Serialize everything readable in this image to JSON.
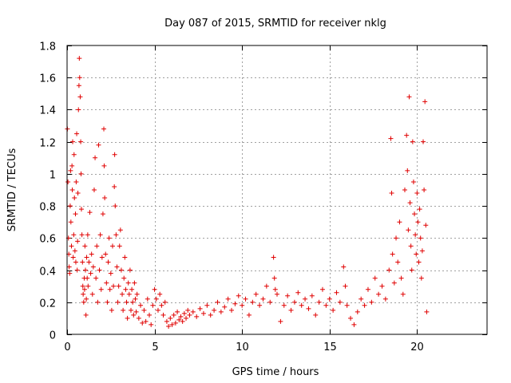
{
  "chart_data": {
    "type": "scatter",
    "title": "Day 087 of 2015, SRMTID for receiver nklg",
    "xlabel": "GPS time / hours",
    "ylabel": "SRMTID / TECUs",
    "xlim": [
      0,
      24
    ],
    "ylim": [
      0,
      1.8
    ],
    "xticks": [
      0,
      5,
      10,
      15,
      20
    ],
    "yticks": [
      0,
      0.2,
      0.4,
      0.6,
      0.8,
      1,
      1.2,
      1.4,
      1.6,
      1.8
    ],
    "xtick_labels": [
      "0",
      "5",
      "10",
      "15",
      "20"
    ],
    "ytick_labels": [
      "0",
      "0.2",
      "0.4",
      "0.6",
      "0.8",
      "1",
      "1.2",
      "1.4",
      "1.6",
      "1.8"
    ],
    "grid": true,
    "marker": "+",
    "color": "#e00000",
    "series": [
      {
        "name": "SRMTID",
        "points": [
          [
            0.02,
            1.28
          ],
          [
            0.05,
            0.95
          ],
          [
            0.08,
            0.6
          ],
          [
            0.1,
            0.5
          ],
          [
            0.12,
            0.42
          ],
          [
            0.15,
            0.38
          ],
          [
            0.18,
            0.8
          ],
          [
            0.2,
            1.02
          ],
          [
            0.22,
            0.7
          ],
          [
            0.25,
            0.55
          ],
          [
            0.28,
            1.05
          ],
          [
            0.3,
            0.9
          ],
          [
            0.32,
            1.2
          ],
          [
            0.35,
            0.48
          ],
          [
            0.38,
            0.62
          ],
          [
            0.4,
            1.12
          ],
          [
            0.42,
            0.85
          ],
          [
            0.45,
            0.52
          ],
          [
            0.48,
            0.75
          ],
          [
            0.5,
            0.45
          ],
          [
            0.52,
            0.95
          ],
          [
            0.55,
            1.25
          ],
          [
            0.58,
            0.4
          ],
          [
            0.6,
            0.58
          ],
          [
            0.62,
            0.88
          ],
          [
            0.65,
            1.4
          ],
          [
            0.68,
            1.55
          ],
          [
            0.7,
            1.72
          ],
          [
            0.72,
            1.6
          ],
          [
            0.75,
            1.48
          ],
          [
            0.78,
            1.2
          ],
          [
            0.8,
            1.0
          ],
          [
            0.82,
            0.78
          ],
          [
            0.85,
            0.62
          ],
          [
            0.88,
            0.45
          ],
          [
            0.9,
            0.3
          ],
          [
            0.92,
            0.25
          ],
          [
            0.95,
            0.2
          ],
          [
            0.98,
            0.35
          ],
          [
            1.0,
            0.28
          ],
          [
            1.02,
            0.55
          ],
          [
            1.05,
            0.4
          ],
          [
            1.08,
            0.12
          ],
          [
            1.1,
            0.22
          ],
          [
            1.12,
            0.48
          ],
          [
            1.15,
            0.35
          ],
          [
            1.18,
            0.62
          ],
          [
            1.2,
            0.3
          ],
          [
            1.25,
            0.45
          ],
          [
            1.3,
            0.76
          ],
          [
            1.35,
            0.38
          ],
          [
            1.4,
            0.5
          ],
          [
            1.45,
            0.25
          ],
          [
            1.5,
            0.42
          ],
          [
            1.55,
            0.9
          ],
          [
            1.6,
            1.1
          ],
          [
            1.65,
            0.35
          ],
          [
            1.7,
            0.55
          ],
          [
            1.75,
            0.2
          ],
          [
            1.8,
            1.18
          ],
          [
            1.85,
            0.4
          ],
          [
            1.9,
            0.62
          ],
          [
            1.95,
            0.28
          ],
          [
            2.0,
            0.48
          ],
          [
            2.05,
            0.75
          ],
          [
            2.1,
            1.28
          ],
          [
            2.12,
            1.05
          ],
          [
            2.15,
            0.85
          ],
          [
            2.2,
            0.5
          ],
          [
            2.25,
            0.32
          ],
          [
            2.3,
            0.2
          ],
          [
            2.35,
            0.45
          ],
          [
            2.4,
            0.6
          ],
          [
            2.45,
            0.28
          ],
          [
            2.5,
            0.38
          ],
          [
            2.55,
            0.15
          ],
          [
            2.6,
            0.55
          ],
          [
            2.65,
            0.3
          ],
          [
            2.7,
            0.92
          ],
          [
            2.72,
            1.12
          ],
          [
            2.75,
            0.8
          ],
          [
            2.8,
            0.62
          ],
          [
            2.85,
            0.42
          ],
          [
            2.9,
            0.2
          ],
          [
            2.95,
            0.3
          ],
          [
            3.0,
            0.55
          ],
          [
            3.05,
            0.65
          ],
          [
            3.1,
            0.4
          ],
          [
            3.15,
            0.25
          ],
          [
            3.2,
            0.15
          ],
          [
            3.25,
            0.35
          ],
          [
            3.3,
            0.48
          ],
          [
            3.35,
            0.28
          ],
          [
            3.4,
            0.2
          ],
          [
            3.45,
            0.1
          ],
          [
            3.5,
            0.32
          ],
          [
            3.55,
            0.25
          ],
          [
            3.6,
            0.4
          ],
          [
            3.65,
            0.15
          ],
          [
            3.7,
            0.28
          ],
          [
            3.75,
            0.2
          ],
          [
            3.8,
            0.12
          ],
          [
            3.85,
            0.32
          ],
          [
            3.9,
            0.22
          ],
          [
            3.95,
            0.14
          ],
          [
            4.0,
            0.25
          ],
          [
            4.1,
            0.1
          ],
          [
            4.2,
            0.18
          ],
          [
            4.3,
            0.07
          ],
          [
            4.4,
            0.15
          ],
          [
            4.5,
            0.08
          ],
          [
            4.6,
            0.22
          ],
          [
            4.7,
            0.12
          ],
          [
            4.8,
            0.06
          ],
          [
            4.9,
            0.18
          ],
          [
            5.0,
            0.28
          ],
          [
            5.1,
            0.22
          ],
          [
            5.2,
            0.15
          ],
          [
            5.3,
            0.25
          ],
          [
            5.4,
            0.18
          ],
          [
            5.5,
            0.12
          ],
          [
            5.6,
            0.2
          ],
          [
            5.7,
            0.08
          ],
          [
            5.8,
            0.05
          ],
          [
            5.9,
            0.1
          ],
          [
            6.0,
            0.06
          ],
          [
            6.1,
            0.12
          ],
          [
            6.2,
            0.07
          ],
          [
            6.3,
            0.14
          ],
          [
            6.4,
            0.09
          ],
          [
            6.5,
            0.11
          ],
          [
            6.6,
            0.08
          ],
          [
            6.7,
            0.13
          ],
          [
            6.8,
            0.1
          ],
          [
            6.9,
            0.15
          ],
          [
            7.0,
            0.12
          ],
          [
            7.2,
            0.14
          ],
          [
            7.4,
            0.11
          ],
          [
            7.6,
            0.16
          ],
          [
            7.8,
            0.13
          ],
          [
            8.0,
            0.18
          ],
          [
            8.2,
            0.12
          ],
          [
            8.4,
            0.15
          ],
          [
            8.6,
            0.2
          ],
          [
            8.8,
            0.14
          ],
          [
            9.0,
            0.17
          ],
          [
            9.2,
            0.22
          ],
          [
            9.4,
            0.15
          ],
          [
            9.6,
            0.19
          ],
          [
            9.8,
            0.24
          ],
          [
            10.0,
            0.18
          ],
          [
            10.2,
            0.22
          ],
          [
            10.4,
            0.12
          ],
          [
            10.6,
            0.2
          ],
          [
            10.8,
            0.25
          ],
          [
            11.0,
            0.18
          ],
          [
            11.2,
            0.22
          ],
          [
            11.4,
            0.3
          ],
          [
            11.6,
            0.2
          ],
          [
            11.8,
            0.48
          ],
          [
            11.85,
            0.35
          ],
          [
            11.9,
            0.28
          ],
          [
            12.0,
            0.25
          ],
          [
            12.2,
            0.08
          ],
          [
            12.4,
            0.18
          ],
          [
            12.6,
            0.24
          ],
          [
            12.8,
            0.15
          ],
          [
            13.0,
            0.2
          ],
          [
            13.2,
            0.26
          ],
          [
            13.4,
            0.18
          ],
          [
            13.6,
            0.22
          ],
          [
            13.8,
            0.16
          ],
          [
            14.0,
            0.24
          ],
          [
            14.2,
            0.12
          ],
          [
            14.4,
            0.2
          ],
          [
            14.6,
            0.28
          ],
          [
            14.8,
            0.18
          ],
          [
            15.0,
            0.22
          ],
          [
            15.2,
            0.15
          ],
          [
            15.4,
            0.26
          ],
          [
            15.6,
            0.2
          ],
          [
            15.8,
            0.42
          ],
          [
            15.9,
            0.3
          ],
          [
            16.0,
            0.18
          ],
          [
            16.2,
            0.1
          ],
          [
            16.4,
            0.06
          ],
          [
            16.6,
            0.14
          ],
          [
            16.8,
            0.22
          ],
          [
            17.0,
            0.18
          ],
          [
            17.2,
            0.28
          ],
          [
            17.4,
            0.2
          ],
          [
            17.6,
            0.35
          ],
          [
            17.8,
            0.25
          ],
          [
            18.0,
            0.3
          ],
          [
            18.2,
            0.22
          ],
          [
            18.4,
            0.4
          ],
          [
            18.5,
            1.22
          ],
          [
            18.55,
            0.88
          ],
          [
            18.6,
            0.5
          ],
          [
            18.7,
            0.32
          ],
          [
            18.8,
            0.6
          ],
          [
            18.9,
            0.45
          ],
          [
            19.0,
            0.7
          ],
          [
            19.1,
            0.35
          ],
          [
            19.2,
            0.25
          ],
          [
            19.3,
            0.9
          ],
          [
            19.4,
            1.24
          ],
          [
            19.45,
            1.02
          ],
          [
            19.5,
            0.65
          ],
          [
            19.55,
            1.48
          ],
          [
            19.6,
            0.82
          ],
          [
            19.65,
            0.55
          ],
          [
            19.7,
            0.4
          ],
          [
            19.75,
            1.2
          ],
          [
            19.8,
            0.95
          ],
          [
            19.85,
            0.75
          ],
          [
            19.9,
            0.62
          ],
          [
            19.95,
            0.5
          ],
          [
            20.0,
            0.88
          ],
          [
            20.05,
            0.7
          ],
          [
            20.1,
            0.45
          ],
          [
            20.15,
            0.78
          ],
          [
            20.2,
            0.6
          ],
          [
            20.25,
            0.35
          ],
          [
            20.3,
            0.52
          ],
          [
            20.35,
            1.2
          ],
          [
            20.4,
            0.9
          ],
          [
            20.45,
            1.45
          ],
          [
            20.5,
            0.68
          ],
          [
            20.55,
            0.14
          ]
        ]
      }
    ]
  }
}
